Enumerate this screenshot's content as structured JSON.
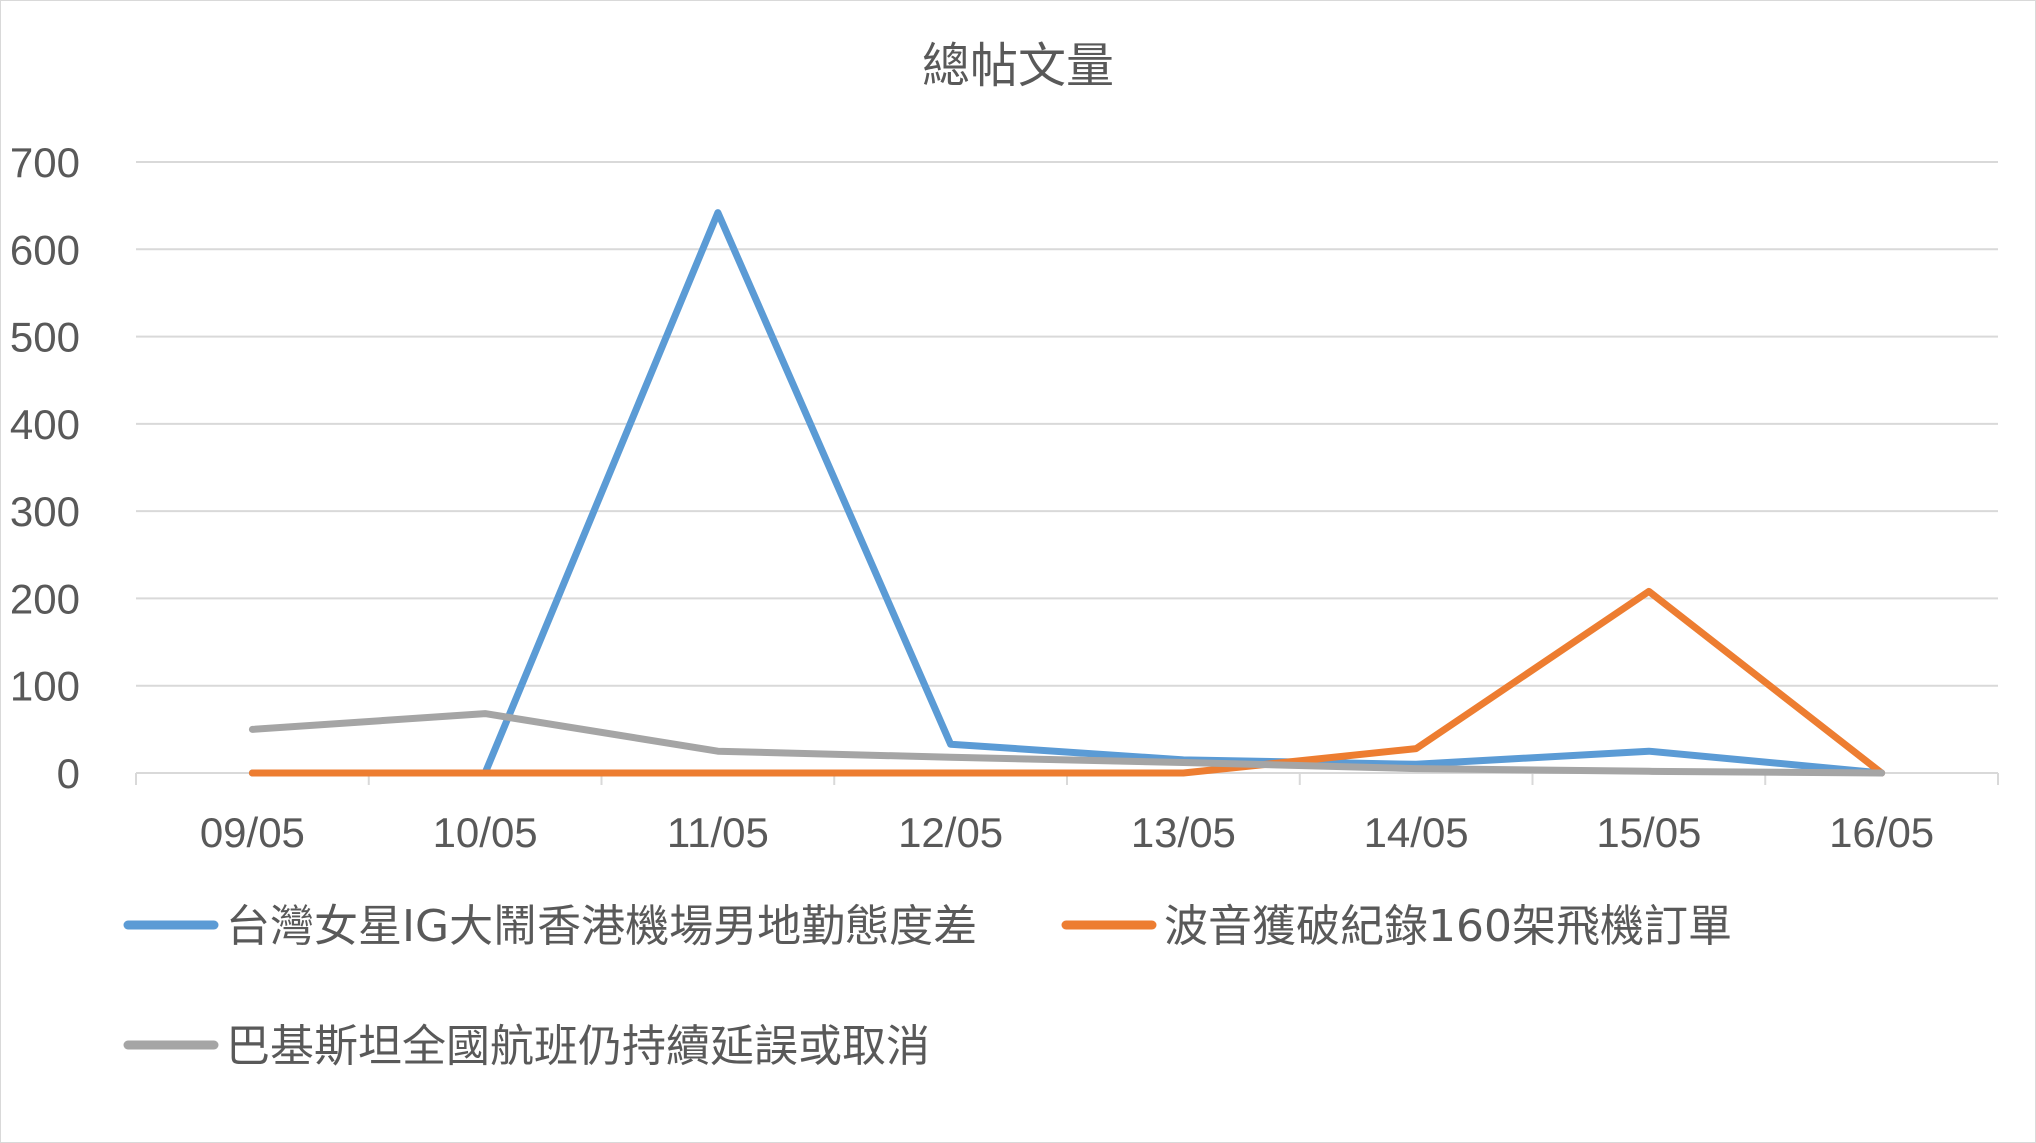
{
  "chart_data": {
    "type": "line",
    "title": "總帖文量",
    "categories": [
      "09/05",
      "10/05",
      "11/05",
      "12/05",
      "13/05",
      "14/05",
      "15/05",
      "16/05"
    ],
    "ylim": [
      0,
      700
    ],
    "yticks": [
      0,
      100,
      200,
      300,
      400,
      500,
      600,
      700
    ],
    "grid": true,
    "legend_position": "bottom",
    "series": [
      {
        "name": "台灣女星IG大鬧香港機場男地勤態度差",
        "color": "#5B9BD5",
        "values": [
          0,
          0,
          642,
          33,
          15,
          10,
          25,
          0
        ]
      },
      {
        "name": "波音獲破紀錄160架飛機訂單",
        "color": "#ED7D31",
        "values": [
          0,
          0,
          0,
          0,
          0,
          28,
          208,
          0
        ]
      },
      {
        "name": "巴基斯坦全國航班仍持續延誤或取消",
        "color": "#A5A5A5",
        "values": [
          50,
          68,
          25,
          18,
          12,
          5,
          2,
          0
        ]
      }
    ]
  }
}
